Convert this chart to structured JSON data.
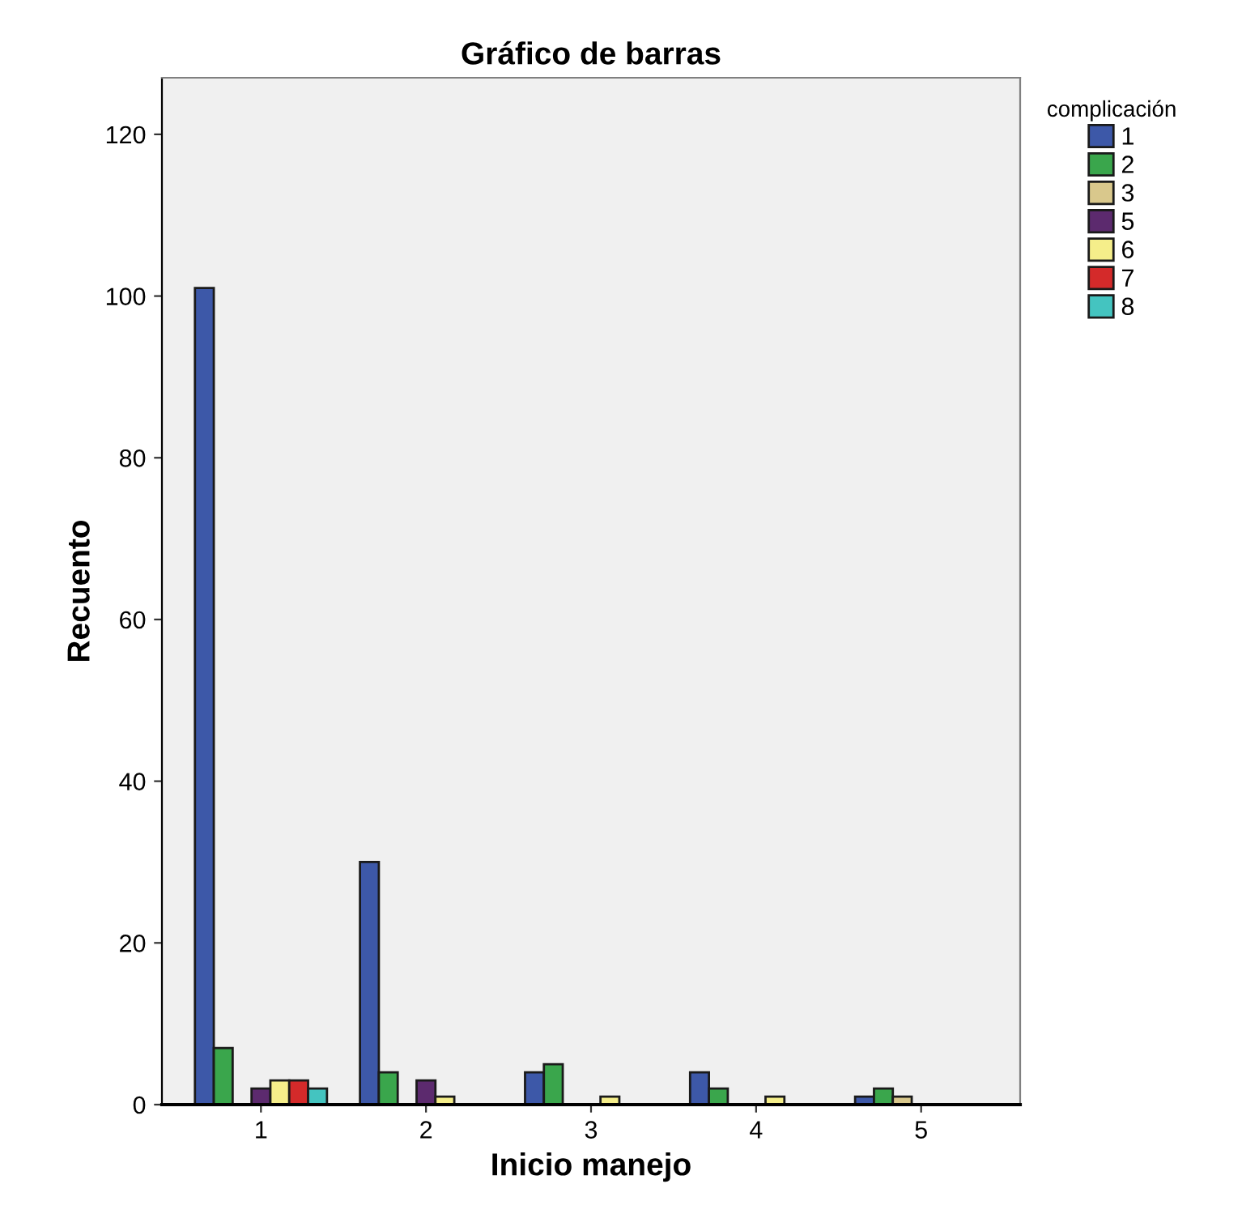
{
  "chart_data": {
    "type": "bar",
    "title": "Gráfico de barras",
    "xlabel": "Inicio manejo",
    "ylabel": "Recuento",
    "legend_title": "complicación",
    "categories": [
      "1",
      "2",
      "3",
      "4",
      "5"
    ],
    "series": [
      {
        "name": "1",
        "color": "#3d58a8",
        "values": [
          101,
          30,
          4,
          4,
          1
        ]
      },
      {
        "name": "2",
        "color": "#3aa64c",
        "values": [
          7,
          4,
          5,
          2,
          2
        ]
      },
      {
        "name": "3",
        "color": "#d9c88c",
        "values": [
          0,
          0,
          0,
          0,
          1
        ]
      },
      {
        "name": "5",
        "color": "#5c2a6e",
        "values": [
          2,
          3,
          0,
          0,
          0
        ]
      },
      {
        "name": "6",
        "color": "#f5ee8a",
        "values": [
          3,
          1,
          1,
          1,
          0
        ]
      },
      {
        "name": "7",
        "color": "#d42a2a",
        "values": [
          3,
          0,
          0,
          0,
          0
        ]
      },
      {
        "name": "8",
        "color": "#44c4c0",
        "values": [
          2,
          0,
          0,
          0,
          0
        ]
      }
    ],
    "ylim": [
      0,
      127
    ],
    "yticks": [
      0,
      20,
      40,
      60,
      80,
      100,
      120
    ],
    "grid": false,
    "legend": "top right"
  }
}
